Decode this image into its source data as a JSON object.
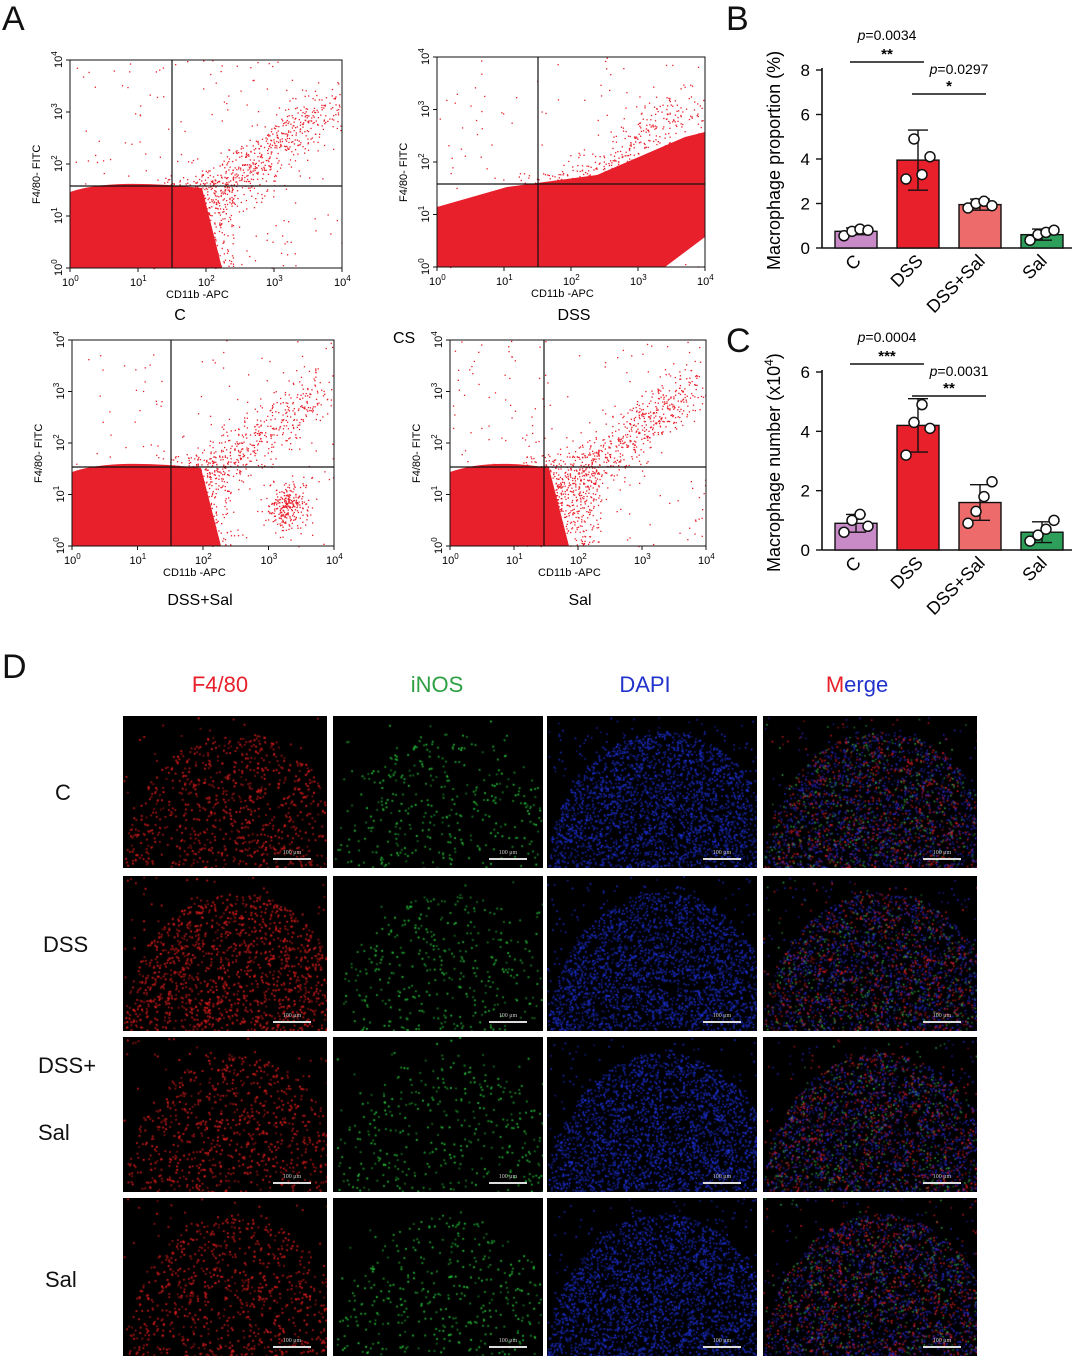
{
  "panels": {
    "A": "A",
    "B": "B",
    "C": "C",
    "D": "D"
  },
  "flow": {
    "ylabel": "F4/80- FITC",
    "xlabel": "CD11b -APC",
    "ticks": [
      "10",
      "10",
      "10",
      "10",
      "10"
    ],
    "exps": [
      "0",
      "1",
      "2",
      "3",
      "4"
    ],
    "stray_label": "CS",
    "plots": [
      {
        "name": "C"
      },
      {
        "name": "DSS"
      },
      {
        "name": "DSS+Sal"
      },
      {
        "name": "Sal"
      }
    ]
  },
  "chart_data": [
    {
      "type": "bar",
      "categories": [
        "C",
        "DSS",
        "DSS+Sal",
        "Sal"
      ],
      "values": [
        0.75,
        3.95,
        1.95,
        0.6
      ],
      "errors": [
        0.15,
        1.35,
        0.25,
        0.25
      ],
      "points": [
        [
          0.55,
          0.75,
          0.85,
          0.8
        ],
        [
          3.1,
          4.9,
          3.3,
          4.1
        ],
        [
          1.8,
          2.0,
          2.1,
          1.9
        ],
        [
          0.35,
          0.6,
          0.7,
          0.8
        ]
      ],
      "colors": [
        "#c98bc8",
        "#e8202b",
        "#ee6b6b",
        "#2e9f5a"
      ],
      "ylabel": "Macrophage proportion (%)",
      "ylim": [
        0,
        8
      ],
      "yticks": [
        "0",
        "2",
        "4",
        "6",
        "8"
      ],
      "comparisons": [
        {
          "p": "p",
          "value": "=0.0034",
          "stars": "**"
        },
        {
          "p": "p",
          "value": "=0.0297",
          "stars": "*"
        }
      ]
    },
    {
      "type": "bar",
      "categories": [
        "C",
        "DSS",
        "DSS+Sal",
        "Sal"
      ],
      "values": [
        0.9,
        4.2,
        1.6,
        0.6
      ],
      "errors": [
        0.3,
        0.9,
        0.6,
        0.35
      ],
      "points": [
        [
          0.6,
          1.0,
          1.2,
          0.8
        ],
        [
          3.2,
          4.3,
          4.9,
          4.1
        ],
        [
          0.9,
          1.3,
          1.8,
          2.3
        ],
        [
          0.3,
          0.5,
          0.7,
          1.0
        ]
      ],
      "colors": [
        "#c98bc8",
        "#e8202b",
        "#ee6b6b",
        "#2e9f5a"
      ],
      "ylabel": "Macrophage number (x10",
      "ylabel_sup": "4",
      "ylabel_end": ")",
      "ylim": [
        0,
        6
      ],
      "yticks": [
        "0",
        "2",
        "4",
        "6"
      ],
      "comparisons": [
        {
          "p": "p",
          "value": "=0.0004",
          "stars": "***"
        },
        {
          "p": "p",
          "value": "=0.0031",
          "stars": "**"
        }
      ]
    }
  ],
  "if": {
    "columns": [
      "F4/80",
      "iNOS",
      "DAPI"
    ],
    "merge": [
      "M",
      "erge"
    ],
    "rows": [
      "C",
      "DSS",
      "DSS+",
      "Sal",
      "Sal"
    ],
    "scale_label": "100 μm"
  },
  "colors": {
    "red": "#e8202b",
    "green": "#2ea043",
    "blue": "#2233cc",
    "black": "#000000"
  }
}
